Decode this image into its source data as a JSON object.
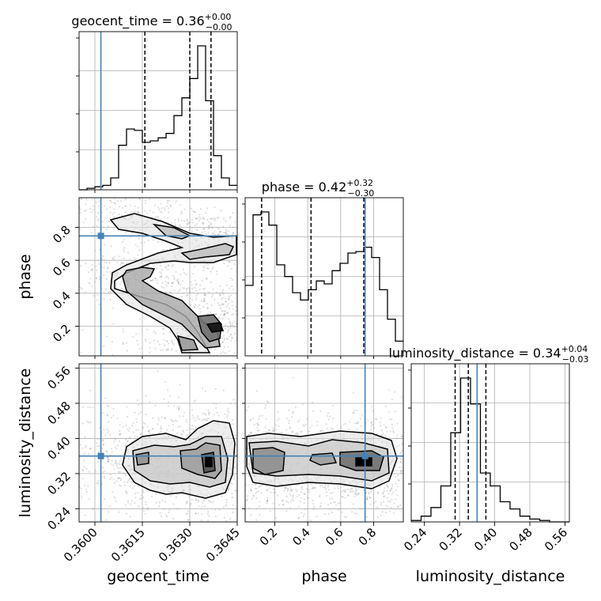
{
  "chart_data": {
    "type": "corner",
    "parameters": [
      "geocent_time",
      "phase",
      "luminosity_distance"
    ],
    "truths": {
      "geocent_time": 0.36019,
      "phase": 0.748,
      "luminosity_distance": 0.36
    },
    "titles": [
      {
        "param": "geocent_time",
        "label": "geocent_time = 0.36",
        "sup": "+0.00",
        "sub": "−0.00"
      },
      {
        "param": "phase",
        "label": "phase = 0.42",
        "sup": "+0.32",
        "sub": "−0.30"
      },
      {
        "param": "luminosity_distance",
        "label": "luminosity_distance = 0.34",
        "sup": "+0.04",
        "sub": "−0.03"
      }
    ],
    "axes": {
      "geocent_time": {
        "label": "geocent_time",
        "range": [
          0.3595,
          0.3645
        ],
        "ticks": [
          0.36,
          0.3615,
          0.363,
          0.3645
        ],
        "tick_labels": [
          "0.3600",
          "0.3615",
          "0.3630",
          "0.3645"
        ]
      },
      "phase": {
        "label": "phase",
        "range": [
          0.02,
          0.98
        ],
        "ticks": [
          0.2,
          0.4,
          0.6,
          0.8
        ],
        "tick_labels": [
          "0.2",
          "0.4",
          "0.6",
          "0.8"
        ]
      },
      "luminosity_distance": {
        "label": "luminosity_distance",
        "range": [
          0.21,
          0.57
        ],
        "ticks": [
          0.24,
          0.32,
          0.4,
          0.48,
          0.56
        ],
        "tick_labels": [
          "0.24",
          "0.32",
          "0.40",
          "0.48",
          "0.56"
        ]
      }
    },
    "quantiles": {
      "geocent_time": [
        0.36158,
        0.363,
        0.36367
      ],
      "phase": [
        0.12,
        0.42,
        0.74
      ],
      "luminosity_distance": [
        0.31,
        0.34,
        0.38
      ]
    },
    "histograms": {
      "geocent_time": {
        "edges_range": [
          0.3595,
          0.3645
        ],
        "counts": [
          0.0,
          0.01,
          0.02,
          0.03,
          0.08,
          0.3,
          0.41,
          0.4,
          0.32,
          0.33,
          0.35,
          0.38,
          0.5,
          0.62,
          0.75,
          0.97,
          0.6,
          0.23,
          0.08,
          0.03
        ]
      },
      "phase": {
        "edges_range": [
          0.02,
          0.98
        ],
        "counts": [
          0.48,
          0.96,
          0.98,
          0.89,
          0.62,
          0.54,
          0.43,
          0.38,
          0.45,
          0.51,
          0.49,
          0.58,
          0.63,
          0.7,
          0.71,
          0.74,
          0.67,
          0.45,
          0.25,
          0.1
        ]
      },
      "luminosity_distance": {
        "edges_range": [
          0.21,
          0.57
        ],
        "counts": [
          0.01,
          0.04,
          0.1,
          0.25,
          0.62,
          1.0,
          0.82,
          0.34,
          0.25,
          0.14,
          0.09,
          0.04,
          0.02,
          0.01,
          0.0,
          0.0
        ]
      }
    },
    "grid": true,
    "grid_color": "#b0b0b0",
    "truth_color": "#4682b4",
    "line_color": "#000000"
  }
}
